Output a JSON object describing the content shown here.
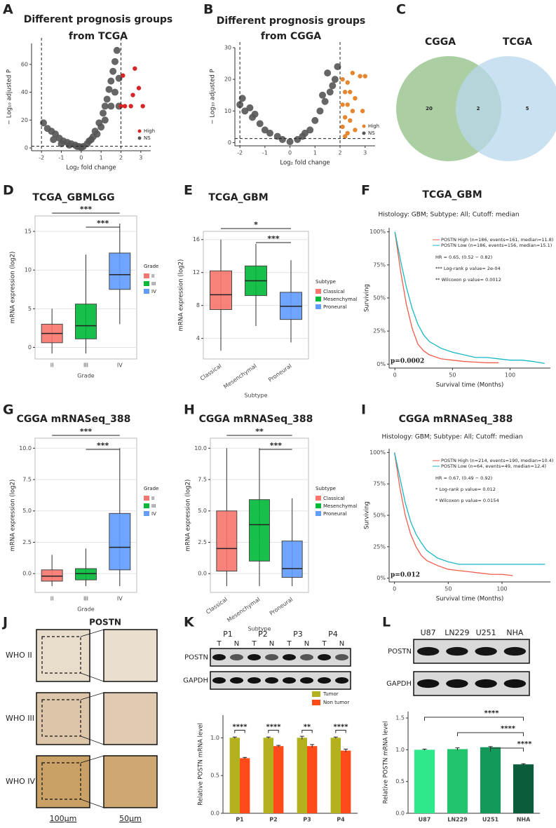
{
  "chart_data": [
    {
      "label": "A",
      "type": "volcano",
      "title": [
        "Different prognosis groups",
        "from TCGA"
      ],
      "xlabel": "Log₂ fold change",
      "ylabel": "− Log₁₀ adjusted P",
      "xlim": [
        -2.5,
        3.5
      ],
      "ylim": [
        -2,
        75
      ],
      "xticks": [
        -2,
        -1,
        0,
        1,
        2,
        3
      ],
      "yticks": [
        0,
        20,
        40,
        60
      ],
      "vlines": [
        -2,
        2
      ],
      "hline": 1.3,
      "series": [
        {
          "name": "NS",
          "color": "#555555",
          "x": [
            -1.9,
            -1.7,
            -1.5,
            -1.3,
            -1.1,
            -0.9,
            -0.7,
            -0.5,
            -0.3,
            -0.1,
            0,
            0.1,
            0.3,
            0.5,
            0.7,
            0.9,
            1.1,
            1.2,
            1.3,
            1.4,
            1.5,
            1.6,
            1.7,
            1.8,
            1.9,
            1.5,
            1.2,
            0.8,
            0.4,
            -0.2,
            -0.6,
            -1.0,
            -1.4,
            1.7,
            1.9,
            1.0,
            0.6
          ],
          "values": [
            18,
            14,
            12,
            10,
            7,
            5,
            4,
            3,
            2,
            1,
            0.5,
            1,
            3,
            6,
            12,
            18,
            25,
            30,
            35,
            42,
            48,
            55,
            62,
            70,
            50,
            30,
            20,
            10,
            5,
            1,
            2,
            3,
            6,
            40,
            30,
            15,
            8
          ]
        },
        {
          "name": "High",
          "color": "#d62728",
          "x": [
            2.1,
            2.7,
            2.9,
            2.6,
            2.2,
            2.5,
            3.1,
            2.0
          ],
          "values": [
            52,
            57,
            43,
            38,
            30,
            30,
            30,
            30
          ]
        }
      ]
    },
    {
      "label": "B",
      "type": "volcano",
      "title": [
        "Different prognosis groups",
        "from CGGA"
      ],
      "xlabel": "Log₂ fold change",
      "ylabel": "− Log₁₀ adjusted P",
      "xlim": [
        -2.2,
        3.4
      ],
      "ylim": [
        -1,
        30
      ],
      "xticks": [
        -2,
        -1,
        0,
        1,
        2,
        3
      ],
      "yticks": [
        0,
        10,
        20,
        30
      ],
      "vlines": [
        -2,
        2
      ],
      "hline": 1.3,
      "series": [
        {
          "name": "NS",
          "color": "#555555",
          "x": [
            -2.0,
            -1.8,
            -1.5,
            -1.2,
            -1.0,
            -0.8,
            -0.5,
            -0.3,
            0,
            0.3,
            0.5,
            0.8,
            1.0,
            1.2,
            1.4,
            1.6,
            1.8,
            1.9,
            1.7,
            1.5,
            -1.9,
            -1.6,
            -1.4,
            0.6,
            1.3
          ],
          "values": [
            12,
            10,
            8,
            6,
            4,
            3,
            2,
            1,
            0.3,
            1,
            2,
            4,
            7,
            10,
            13,
            16,
            20,
            24,
            18,
            22,
            14,
            11,
            9,
            3,
            15
          ]
        },
        {
          "name": "High",
          "color": "#e6862e",
          "x": [
            2.1,
            2.3,
            2.5,
            2.8,
            3.0,
            2.2,
            2.4,
            2.6,
            2.1,
            2.3,
            2.5,
            2.9,
            2.2,
            2.4,
            2.1,
            2.6,
            2.3,
            2.2
          ],
          "values": [
            20,
            19,
            22,
            21,
            21,
            16,
            16,
            14,
            12,
            12,
            10,
            10,
            8,
            7,
            5,
            4,
            3,
            2
          ]
        }
      ]
    },
    {
      "label": "C",
      "type": "venn",
      "sets": [
        {
          "name": "CGGA",
          "color": "#8fbf84"
        },
        {
          "name": "TCGA",
          "color": "#b8d7ee"
        }
      ],
      "counts": [
        20,
        2,
        5
      ]
    },
    {
      "label": "D",
      "type": "box",
      "title": [
        "TCGA_GBMLGG"
      ],
      "xlabel": "Grade",
      "ylabel": "mRNA expression (log2)",
      "legend_title": "Grade",
      "categories": [
        "II",
        "III",
        "IV"
      ],
      "colors": [
        "#f8766d",
        "#00ba38",
        "#619cff"
      ],
      "ylim": [
        -1.5,
        17
      ],
      "yticks": [
        0,
        5,
        10,
        15
      ],
      "grid": true,
      "low": [
        -0.8,
        -0.8,
        3
      ],
      "q1": [
        0.6,
        1.1,
        7.5
      ],
      "median": [
        1.8,
        2.8,
        9.4
      ],
      "q3": [
        3.0,
        5.6,
        12.2
      ],
      "high": [
        5,
        12,
        16
      ],
      "comparisons": [
        {
          "from": "II",
          "to": "IV",
          "text": "***"
        },
        {
          "from": "III",
          "to": "IV",
          "text": "***"
        }
      ]
    },
    {
      "label": "E",
      "type": "box",
      "title": [
        "TCGA_GBM"
      ],
      "xlabel": "Subtype",
      "ylabel": "mRNA expression (log2)",
      "legend_title": "Subtype",
      "categories": [
        "Classical",
        "Mesenchymal",
        "Proneural"
      ],
      "colors": [
        "#f8766d",
        "#00ba38",
        "#619cff"
      ],
      "ylim": [
        1.5,
        17
      ],
      "yticks": [
        4,
        8,
        12,
        16
      ],
      "grid": true,
      "low": [
        2.5,
        5.5,
        3.5
      ],
      "q1": [
        7.5,
        9.2,
        6.3
      ],
      "median": [
        9.3,
        11,
        7.9
      ],
      "q3": [
        12.2,
        12.8,
        9.6
      ],
      "high": [
        16,
        15.5,
        13.5
      ],
      "comparisons": [
        {
          "from": "Classical",
          "to": "Proneural",
          "text": "*"
        },
        {
          "from": "Mesenchymal",
          "to": "Proneural",
          "text": "***"
        }
      ]
    },
    {
      "label": "F",
      "type": "km",
      "title": [
        "TCGA_GBM"
      ],
      "subtitle": "Histology: GBM; Subtype: All; Cutoff: median",
      "xlabel": "Survival time (Months)",
      "ylabel": "Surviving",
      "xlim": [
        -5,
        135
      ],
      "ylim": [
        -3,
        103
      ],
      "xticks": [
        0,
        50,
        100
      ],
      "yticks": [
        {
          "value": 0,
          "label": "0%"
        },
        {
          "value": 25,
          "label": "25%"
        },
        {
          "value": 50,
          "label": "50%"
        },
        {
          "value": 75,
          "label": "75%"
        },
        {
          "value": 100,
          "label": "100%"
        }
      ],
      "series": [
        {
          "name": "POSTN High (n=186, events=161, median=11.8)",
          "color": "#f25c4f",
          "x": [
            0,
            5,
            10,
            15,
            20,
            25,
            30,
            40,
            50,
            60,
            70,
            80,
            90
          ],
          "values": [
            100,
            70,
            45,
            27,
            15,
            10,
            7,
            4,
            3,
            2,
            1.5,
            1,
            1
          ]
        },
        {
          "name": "POSTN Low (n=186, events=156, median=15.1)",
          "color": "#17b8c4",
          "x": [
            0,
            5,
            10,
            15,
            20,
            25,
            30,
            40,
            50,
            60,
            70,
            80,
            90,
            100,
            110,
            120,
            130
          ],
          "values": [
            100,
            78,
            58,
            42,
            30,
            22,
            17,
            12,
            9,
            7,
            5,
            5,
            4,
            3,
            3,
            2,
            0.5
          ]
        }
      ],
      "annotations": [
        "HR = 0.65, (0.52 − 0.82)",
        "*** Log-rank p value= 2e-04",
        "** Wilcoxon p value= 0.0012"
      ],
      "pvalue": "p=0.0002"
    },
    {
      "label": "G",
      "type": "box",
      "title": [
        "CGGA mRNASeq_388"
      ],
      "xlabel": "Grade",
      "ylabel": "mRNA expression (log2)",
      "legend_title": "Grade",
      "categories": [
        "II",
        "III",
        "IV"
      ],
      "colors": [
        "#f8766d",
        "#00ba38",
        "#619cff"
      ],
      "ylim": [
        -1.5,
        10.8
      ],
      "yticks": [
        {
          "value": 0,
          "label": "0.0"
        },
        {
          "value": 2.5,
          "label": "2.5"
        },
        {
          "value": 5,
          "label": "5.0"
        },
        {
          "value": 7.5,
          "label": "7.5"
        },
        {
          "value": 10,
          "label": "10.0"
        }
      ],
      "grid": true,
      "low": [
        -1,
        -1,
        -1
      ],
      "q1": [
        -0.6,
        -0.5,
        0.3
      ],
      "median": [
        -0.2,
        0,
        2.1
      ],
      "q3": [
        0.3,
        0.4,
        4.8
      ],
      "high": [
        1.5,
        2,
        10
      ],
      "comparisons": [
        {
          "from": "II",
          "to": "IV",
          "text": "***"
        },
        {
          "from": "III",
          "to": "IV",
          "text": "***"
        }
      ]
    },
    {
      "label": "H",
      "type": "box",
      "title": [
        "CGGA mRNASeq_388"
      ],
      "xlabel": "Subtype",
      "ylabel": "mRNA expression (log2)",
      "legend_title": "Subtype",
      "categories": [
        "Classical",
        "Mesenchymal",
        "Proneural"
      ],
      "colors": [
        "#f8766d",
        "#00ba38",
        "#619cff"
      ],
      "ylim": [
        -1.5,
        10.8
      ],
      "yticks": [
        {
          "value": 0,
          "label": "0.0"
        },
        {
          "value": 2.5,
          "label": "2.5"
        },
        {
          "value": 5,
          "label": "5.0"
        },
        {
          "value": 7.5,
          "label": "7.5"
        },
        {
          "value": 10,
          "label": "10.0"
        }
      ],
      "grid": true,
      "low": [
        -1,
        -1,
        -1
      ],
      "q1": [
        0.2,
        1,
        -0.3
      ],
      "median": [
        2,
        3.9,
        0.4
      ],
      "q3": [
        5,
        5.9,
        2.6
      ],
      "high": [
        10,
        10,
        6
      ],
      "comparisons": [
        {
          "from": "Classical",
          "to": "Proneural",
          "text": "**"
        },
        {
          "from": "Mesenchymal",
          "to": "Proneural",
          "text": "***"
        }
      ]
    },
    {
      "label": "I",
      "type": "km",
      "title": [
        "CGGA mRNASeq_388"
      ],
      "subtitle": "Histology: GBM; Subtype: All; Cutoff: median",
      "xlabel": "Survival time (Months)",
      "ylabel": "Surviving",
      "xlim": [
        -5,
        145
      ],
      "ylim": [
        -3,
        103
      ],
      "xticks": [
        0,
        50,
        100
      ],
      "yticks": [
        {
          "value": 0,
          "label": "0%"
        },
        {
          "value": 25,
          "label": "25%"
        },
        {
          "value": 50,
          "label": "50%"
        },
        {
          "value": 75,
          "label": "75%"
        },
        {
          "value": 100,
          "label": "100%"
        }
      ],
      "series": [
        {
          "name": "POSTN High (n=214, events=190, median=10.4)",
          "color": "#f25c4f",
          "x": [
            0,
            5,
            10,
            15,
            20,
            25,
            30,
            40,
            50,
            60,
            70,
            80,
            90,
            100,
            110
          ],
          "values": [
            100,
            72,
            50,
            35,
            25,
            18,
            14,
            10,
            7,
            6,
            5,
            4,
            3,
            3,
            2
          ]
        },
        {
          "name": "POSTN Low (n=64, events=49, median=12.4)",
          "color": "#17b8c4",
          "x": [
            0,
            5,
            10,
            15,
            20,
            25,
            30,
            40,
            50,
            60,
            80,
            100,
            120,
            140
          ],
          "values": [
            100,
            80,
            60,
            45,
            35,
            28,
            22,
            16,
            13,
            11,
            11,
            11,
            11,
            11
          ]
        }
      ],
      "annotations": [
        "HR = 0.67, (0.49 − 0.92)",
        "* Log-rank p value= 0.012",
        "* Wilcoxon p value= 0.0154"
      ],
      "pvalue": "p=0.012"
    },
    {
      "label": "K",
      "type": "bar",
      "ylabel": "Relative POSTN mRNA level",
      "categories": [
        "P1",
        "P2",
        "P3",
        "P4"
      ],
      "ylim": [
        0,
        1.3
      ],
      "yticks": [
        {
          "value": 0,
          "label": "0.0"
        },
        {
          "value": 0.5,
          "label": "0.5"
        },
        {
          "value": 1,
          "label": "1.0"
        }
      ],
      "series": [
        {
          "name": "Tumor",
          "color": "#b3b11e",
          "values": [
            1,
            1,
            1,
            1
          ],
          "errors": [
            0.01,
            0.01,
            0.02,
            0.01
          ]
        },
        {
          "name": "Non tumor",
          "color": "#ff4a1a",
          "values": [
            0.73,
            0.89,
            0.89,
            0.83
          ],
          "errors": [
            0.01,
            0.01,
            0.02,
            0.02
          ]
        }
      ],
      "significance": [
        "****",
        "****",
        "**",
        "****"
      ],
      "blot": {
        "groups": [
          "P1",
          "P2",
          "P3",
          "P4"
        ],
        "lanes": [
          "T",
          "N"
        ],
        "rows": [
          "POSTN",
          "GAPDH"
        ]
      }
    },
    {
      "label": "L",
      "type": "bar",
      "ylabel": "Relative POSTN mRNA level",
      "categories": [
        "U87",
        "LN229",
        "U251",
        "NHA"
      ],
      "ylim": [
        0,
        1.6
      ],
      "yticks": [
        {
          "value": 0,
          "label": "0.0"
        },
        {
          "value": 0.5,
          "label": "0.5"
        },
        {
          "value": 1,
          "label": "1.0"
        },
        {
          "value": 1.5,
          "label": "1.5"
        }
      ],
      "series": [
        {
          "colors": [
            "#2ee88c",
            "#22c46e",
            "#13995a",
            "#0b5c3a"
          ],
          "values": [
            1.0,
            1.01,
            1.04,
            0.77
          ],
          "errors": [
            0.01,
            0.02,
            0.01,
            0.01
          ]
        }
      ],
      "comparisons": [
        {
          "from": "U87",
          "to": "NHA",
          "text": "****"
        },
        {
          "from": "LN229",
          "to": "NHA",
          "text": "****"
        },
        {
          "from": "U251",
          "to": "NHA",
          "text": "****"
        }
      ],
      "blot": {
        "groups": [
          "U87",
          "LN229",
          "U251",
          "NHA"
        ],
        "rows": [
          "POSTN",
          "GAPDH"
        ]
      }
    }
  ],
  "ihc": {
    "label": "J",
    "title": "POSTN",
    "rows": [
      "WHO II",
      "WHO III",
      "WHO IV"
    ],
    "scales": [
      "100μm",
      "50μm"
    ]
  }
}
